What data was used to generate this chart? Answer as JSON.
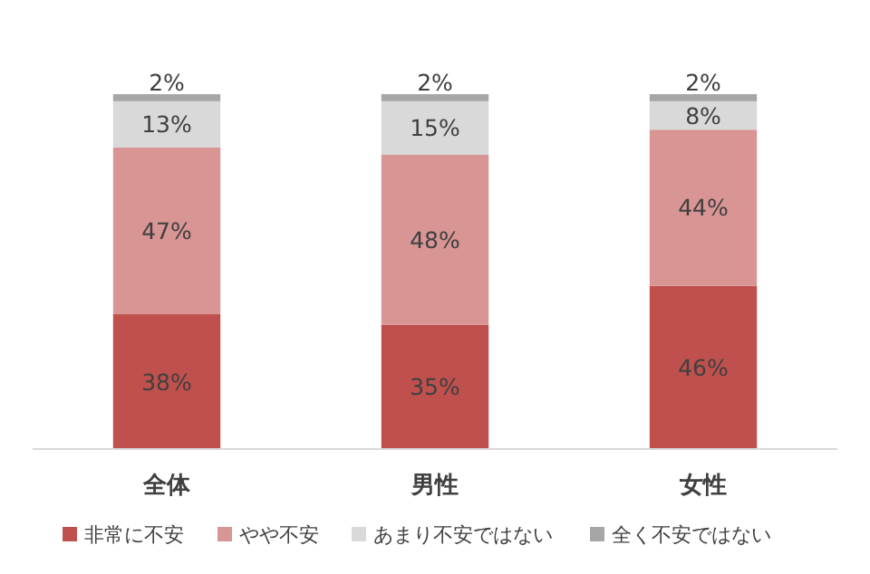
{
  "chart_data": {
    "type": "bar",
    "stacked": true,
    "categories": [
      "全体",
      "男性",
      "女性"
    ],
    "legend": "bottom",
    "series": [
      {
        "name": "非常に不安",
        "color": "#c0504d",
        "values": [
          38,
          35,
          46
        ],
        "value_labels": [
          "38%",
          "35%",
          "46%"
        ]
      },
      {
        "name": "やや不安",
        "color": "#d99594",
        "values": [
          47,
          48,
          44
        ],
        "value_labels": [
          "47%",
          "48%",
          "44%"
        ]
      },
      {
        "name": "あまり不安ではない",
        "color": "#d9d9d9",
        "values": [
          13,
          15,
          8
        ],
        "value_labels": [
          "13%",
          "15%",
          "8%"
        ]
      },
      {
        "name": "全く不安ではない",
        "color": "#a6a6a6",
        "values": [
          2,
          2,
          2
        ],
        "value_labels": [
          "2%",
          "2%",
          "2%"
        ]
      }
    ]
  }
}
